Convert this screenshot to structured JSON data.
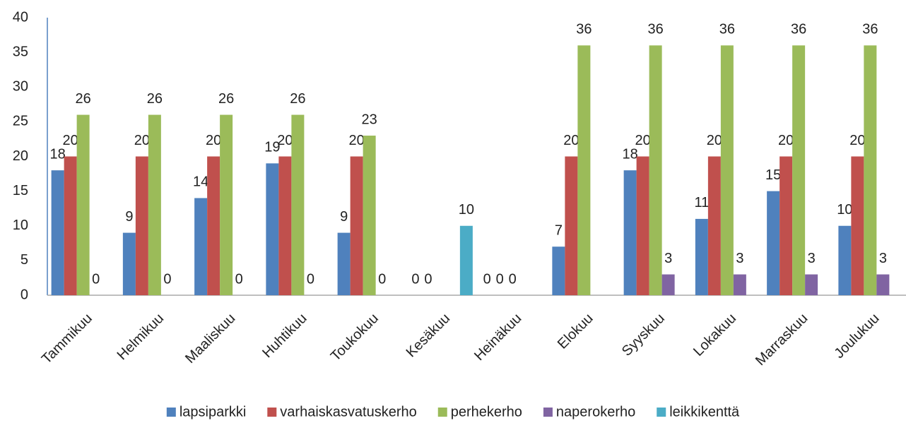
{
  "chart_data": {
    "type": "bar",
    "categories": [
      "Tammikuu",
      "Helmikuu",
      "Maaliskuu",
      "Huhtikuu",
      "Toukokuu",
      "Kesäkuu",
      "Heinäkuu",
      "Elokuu",
      "Syyskuu",
      "Lokakuu",
      "Marraskuu",
      "Joulukuu"
    ],
    "series": [
      {
        "name": "lapsiparkki",
        "color": "#4f81bd",
        "values": [
          18,
          9,
          14,
          19,
          9,
          0,
          0,
          7,
          18,
          11,
          15,
          10
        ]
      },
      {
        "name": "varhaiskasvatuskerho",
        "color": "#c0504d",
        "values": [
          20,
          20,
          20,
          20,
          20,
          0,
          0,
          20,
          20,
          20,
          20,
          20
        ]
      },
      {
        "name": "perhekerho",
        "color": "#9bbb59",
        "values": [
          26,
          26,
          26,
          26,
          23,
          null,
          0,
          36,
          36,
          36,
          36,
          36
        ]
      },
      {
        "name": "naperokerho",
        "color": "#8064a2",
        "values": [
          0,
          0,
          0,
          0,
          0,
          null,
          null,
          null,
          3,
          3,
          3,
          3
        ]
      },
      {
        "name": "leikkikenttä",
        "color": "#4bacc6",
        "values": [
          null,
          null,
          null,
          null,
          null,
          10,
          null,
          null,
          null,
          null,
          null,
          null
        ]
      }
    ],
    "ylim": [
      0,
      40
    ],
    "yticks": [
      0,
      5,
      10,
      15,
      20,
      25,
      30,
      35,
      40
    ],
    "grid": false,
    "legend": "bottom",
    "data_labels": true
  }
}
